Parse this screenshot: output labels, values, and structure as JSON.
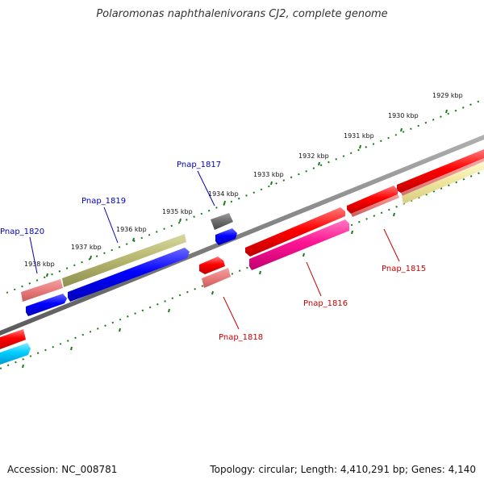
{
  "title": "Polaromonas naphthalenivorans CJ2, complete genome",
  "footer": {
    "accession": "Accession: NC_008781",
    "stats": "Topology: circular; Length: 4,410,291 bp; Genes: 4,140"
  },
  "colors": {
    "backbone": "#808080",
    "tick": "#1a7a1a",
    "forward_label": "#cc0000",
    "reverse_label": "#0000bb"
  },
  "kbp_labels": [
    "1929 kbp",
    "1930 kbp",
    "1931 kbp",
    "1932 kbp",
    "1933 kbp",
    "1934 kbp",
    "1935 kbp",
    "1936 kbp",
    "1937 kbp",
    "1938 kbp"
  ],
  "genes": [
    {
      "label": "Pnap_1815",
      "strand": "forward",
      "color": "#ff0000"
    },
    {
      "label": "Pnap_1816",
      "strand": "forward",
      "color": "#ff1493"
    },
    {
      "label": "Pnap_1817",
      "strand": "reverse",
      "color": "#0000ff"
    },
    {
      "label": "Pnap_1818",
      "strand": "forward",
      "color": "#ff0000"
    },
    {
      "label": "Pnap_1819",
      "strand": "reverse",
      "color": "#0000ff"
    },
    {
      "label": "Pnap_1820",
      "strand": "reverse",
      "color": "#0000ff"
    }
  ]
}
